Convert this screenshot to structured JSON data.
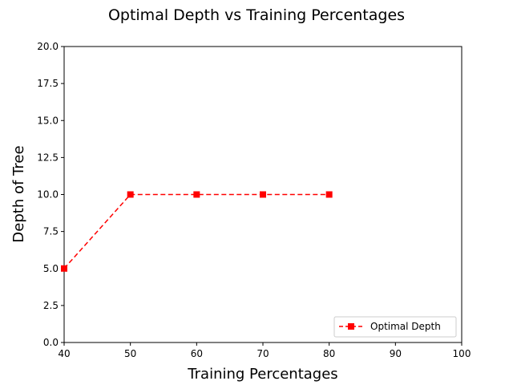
{
  "chart_data": {
    "type": "line",
    "title": "Optimal Depth vs Training Percentages",
    "xlabel": "Training Percentages",
    "ylabel": "Depth of Tree",
    "xlim": [
      40,
      100
    ],
    "ylim": [
      0,
      20
    ],
    "x_ticks": [
      "40",
      "50",
      "60",
      "70",
      "80",
      "90",
      "100"
    ],
    "y_ticks": [
      "0.0",
      "2.5",
      "5.0",
      "7.5",
      "10.0",
      "12.5",
      "15.0",
      "17.5",
      "20.0"
    ],
    "grid": false,
    "legend_position": "lower-right",
    "series": [
      {
        "name": "Optimal Depth",
        "color": "#ff0000",
        "line_style": "dashed",
        "marker": "square",
        "x": [
          40,
          50,
          60,
          70,
          80
        ],
        "y": [
          5,
          10,
          10,
          10,
          10
        ]
      }
    ]
  }
}
